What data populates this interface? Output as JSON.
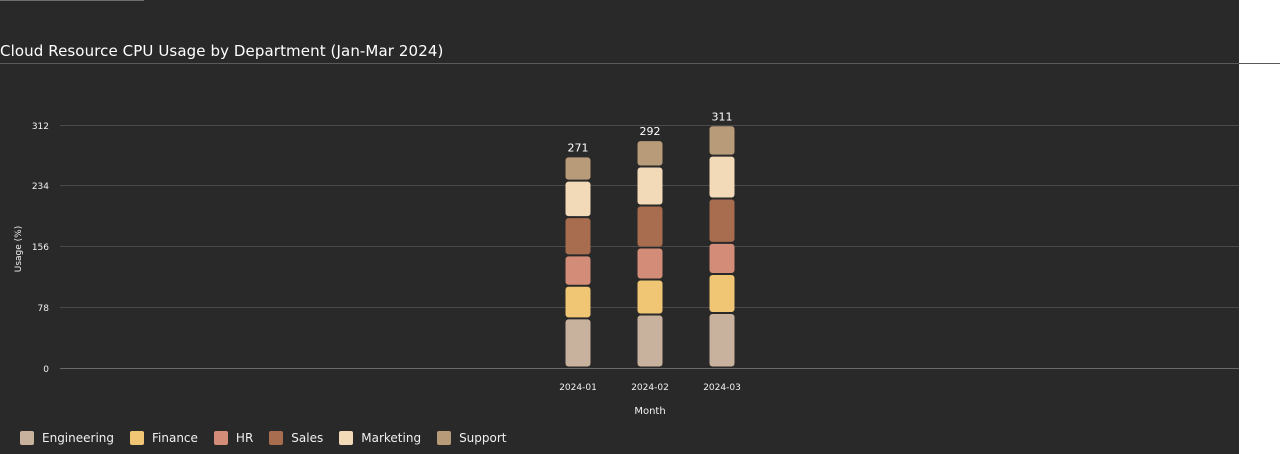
{
  "chart_data": {
    "type": "bar",
    "stacked": true,
    "title": "Cloud Resource CPU Usage by Department (Jan-Mar 2024)",
    "xlabel": "Month",
    "ylabel": "Usage (%)",
    "categories": [
      "2024-01",
      "2024-02",
      "2024-03"
    ],
    "yticks": [
      0,
      78,
      156,
      234,
      312
    ],
    "ylim": [
      0,
      312
    ],
    "grid": true,
    "legend_position": "bottom-left",
    "series": [
      {
        "name": "Engineering",
        "color": "#c8b29d",
        "values": [
          63,
          68,
          70
        ]
      },
      {
        "name": "Finance",
        "color": "#f0c674",
        "values": [
          42,
          45,
          50
        ]
      },
      {
        "name": "HR",
        "color": "#d38c78",
        "values": [
          39,
          41,
          40
        ]
      },
      {
        "name": "Sales",
        "color": "#a86c4e",
        "values": [
          49,
          54,
          57
        ]
      },
      {
        "name": "Marketing",
        "color": "#f2d9b8",
        "values": [
          47,
          50,
          55
        ]
      },
      {
        "name": "Support",
        "color": "#b89b78",
        "values": [
          31,
          34,
          39
        ]
      }
    ],
    "totals": [
      271,
      292,
      311
    ]
  }
}
